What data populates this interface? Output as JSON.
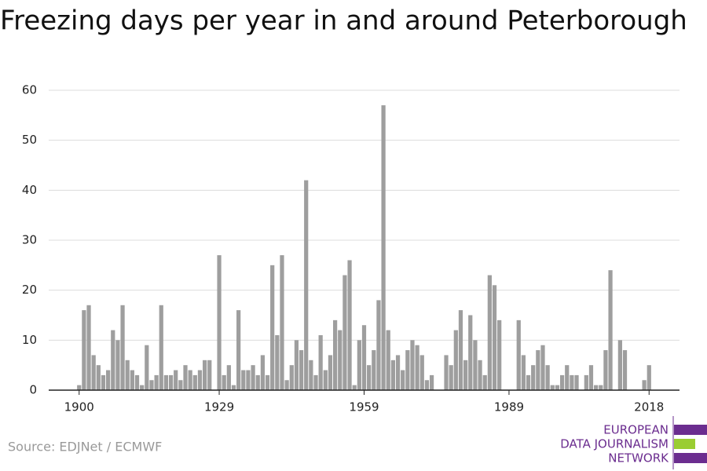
{
  "chart_data": {
    "type": "bar",
    "title": "Freezing days per year in and around Peterborough",
    "x": [
      1900,
      1901,
      1902,
      1903,
      1904,
      1905,
      1906,
      1907,
      1908,
      1909,
      1910,
      1911,
      1912,
      1913,
      1914,
      1915,
      1916,
      1917,
      1918,
      1919,
      1920,
      1921,
      1922,
      1923,
      1924,
      1925,
      1926,
      1927,
      1928,
      1929,
      1930,
      1931,
      1932,
      1933,
      1934,
      1935,
      1936,
      1937,
      1938,
      1939,
      1940,
      1941,
      1942,
      1943,
      1944,
      1945,
      1946,
      1947,
      1948,
      1949,
      1950,
      1951,
      1952,
      1953,
      1954,
      1955,
      1956,
      1957,
      1958,
      1959,
      1960,
      1961,
      1962,
      1963,
      1964,
      1965,
      1966,
      1967,
      1968,
      1969,
      1970,
      1971,
      1972,
      1973,
      1974,
      1975,
      1976,
      1977,
      1978,
      1979,
      1980,
      1981,
      1982,
      1983,
      1984,
      1985,
      1986,
      1987,
      1988,
      1989,
      1990,
      1991,
      1992,
      1993,
      1994,
      1995,
      1996,
      1997,
      1998,
      1999,
      2000,
      2001,
      2002,
      2003,
      2004,
      2005,
      2006,
      2007,
      2008,
      2009,
      2010,
      2011,
      2012,
      2013,
      2014,
      2015,
      2016,
      2017,
      2018
    ],
    "values": [
      1,
      16,
      17,
      7,
      5,
      3,
      4,
      12,
      10,
      17,
      6,
      4,
      3,
      1,
      9,
      2,
      3,
      17,
      3,
      3,
      4,
      2,
      5,
      4,
      3,
      4,
      6,
      6,
      0,
      27,
      3,
      5,
      1,
      16,
      4,
      4,
      5,
      3,
      7,
      3,
      25,
      11,
      27,
      2,
      5,
      10,
      8,
      42,
      6,
      3,
      11,
      4,
      7,
      14,
      12,
      23,
      26,
      1,
      10,
      13,
      5,
      8,
      18,
      57,
      12,
      6,
      7,
      4,
      8,
      10,
      9,
      7,
      2,
      3,
      0,
      0,
      7,
      5,
      12,
      16,
      6,
      15,
      10,
      6,
      3,
      23,
      21,
      14,
      0,
      0,
      0,
      14,
      7,
      3,
      5,
      8,
      9,
      5,
      1,
      1,
      3,
      5,
      3,
      3,
      0,
      3,
      5,
      1,
      1,
      8,
      24,
      0,
      10,
      8,
      0,
      0,
      0,
      2,
      5
    ],
    "color": "#9e9e9e",
    "xlim": [
      1893.7,
      2024.3
    ],
    "xticks": [
      1900,
      1929,
      1959,
      1989,
      2018
    ],
    "ylim": [
      0,
      60
    ],
    "yticks": [
      0,
      10,
      20,
      30,
      40,
      50,
      60
    ],
    "grid": true,
    "source": "Source: EDJNet / ECMWF",
    "logo": [
      "EUROPEAN",
      "DATA JOURNALISM",
      "NETWORK"
    ]
  }
}
